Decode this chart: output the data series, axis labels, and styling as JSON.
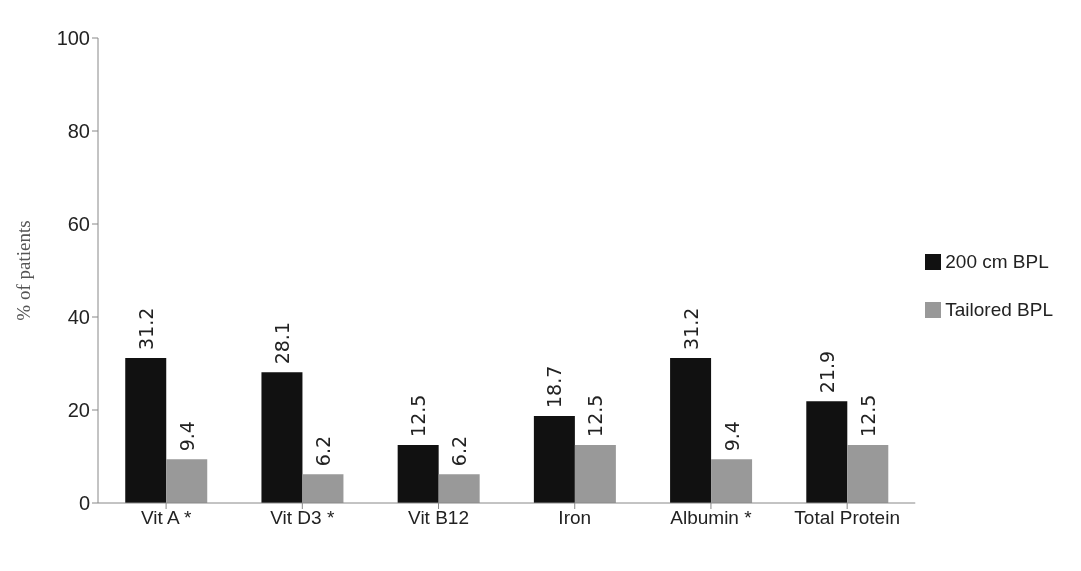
{
  "chart_data": {
    "type": "bar",
    "ylabel": "% of patients",
    "categories": [
      "Vit A *",
      "Vit D3 *",
      "Vit B12",
      "Iron",
      "Albumin *",
      "Total Protein"
    ],
    "series": [
      {
        "name": "200 cm BPL",
        "color": "#111111",
        "values": [
          31.2,
          28.1,
          12.5,
          18.7,
          31.2,
          21.9
        ]
      },
      {
        "name": "Tailored BPL",
        "color": "#999999",
        "values": [
          9.4,
          6.2,
          6.2,
          12.5,
          9.4,
          12.5
        ]
      }
    ],
    "ylim": [
      0,
      100
    ],
    "yticks": [
      0,
      20,
      40,
      60,
      80,
      100
    ],
    "grid": false,
    "legend": "right",
    "data_labels": true
  }
}
